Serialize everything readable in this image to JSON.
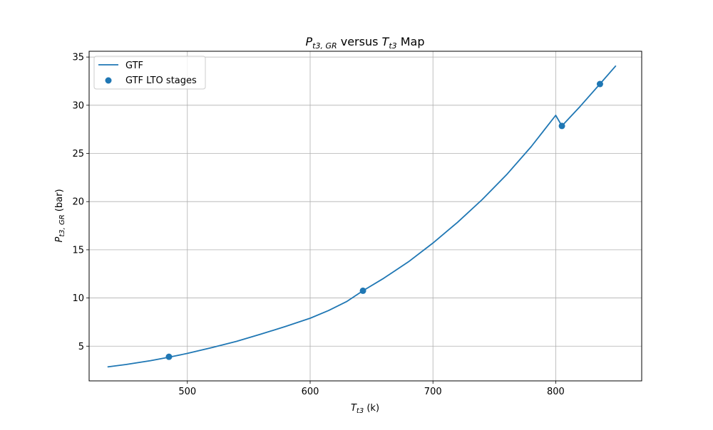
{
  "chart_data": {
    "type": "line",
    "title": {
      "var_main": "P",
      "var_sub": "t3, GR",
      "mid": " versus ",
      "var2_main": "T",
      "var2_sub": "t3",
      "end": " Map"
    },
    "xlabel": {
      "main": "T",
      "sub": "t3",
      "unit": " (k)"
    },
    "ylabel": {
      "main": "P",
      "sub": "t3, GR",
      "unit": " (bar)"
    },
    "xlim": [
      420,
      870
    ],
    "ylim": [
      1.4,
      35.6
    ],
    "xticks": [
      500,
      600,
      700,
      800
    ],
    "yticks": [
      5,
      10,
      15,
      20,
      25,
      30,
      35
    ],
    "grid": true,
    "legend_position": "upper-left",
    "series": [
      {
        "name": "GTF",
        "kind": "line",
        "color": "#1f77b4",
        "x": [
          435,
          450,
          470,
          485,
          500,
          520,
          540,
          560,
          580,
          600,
          615,
          630,
          643,
          660,
          680,
          700,
          720,
          740,
          760,
          780,
          800,
          805,
          820,
          836,
          849
        ],
        "y": [
          2.85,
          3.1,
          3.5,
          3.85,
          4.25,
          4.85,
          5.5,
          6.25,
          7.05,
          7.9,
          8.7,
          9.65,
          10.75,
          12.05,
          13.75,
          15.7,
          17.85,
          20.2,
          22.8,
          25.7,
          28.95,
          27.85,
          29.9,
          32.2,
          34.1
        ]
      },
      {
        "name": "GTF LTO stages",
        "kind": "scatter",
        "color": "#1f77b4",
        "x": [
          485,
          643,
          805,
          836
        ],
        "y": [
          3.9,
          10.75,
          27.85,
          32.2
        ]
      }
    ]
  }
}
